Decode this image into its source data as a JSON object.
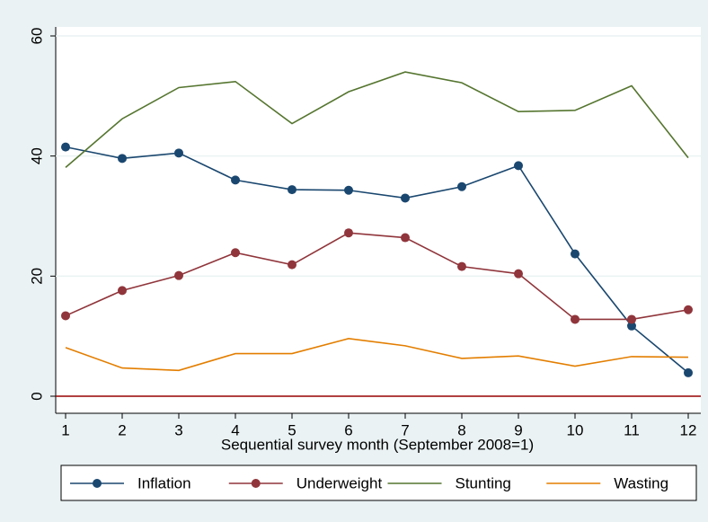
{
  "chart_data": {
    "type": "line",
    "x_label": "Sequential survey month (September 2008=1)",
    "x": [
      1,
      2,
      3,
      4,
      5,
      6,
      7,
      8,
      9,
      10,
      11,
      12
    ],
    "xlim": [
      1,
      12
    ],
    "xticks": [
      1,
      2,
      3,
      4,
      5,
      6,
      7,
      8,
      9,
      10,
      11,
      12
    ],
    "ylim": [
      0,
      60
    ],
    "yticks": [
      0,
      20,
      40,
      60
    ],
    "grid": true,
    "legend": "bottom",
    "yline": {
      "value": 0,
      "color": "#990000"
    },
    "series": [
      {
        "name": "Inflation",
        "color": "#1a476f",
        "marker": true,
        "values": [
          41.5,
          39.6,
          40.5,
          36.0,
          34.4,
          34.3,
          33.0,
          34.9,
          38.4,
          23.7,
          11.7,
          3.9
        ]
      },
      {
        "name": "Underweight",
        "color": "#90353b",
        "marker": true,
        "values": [
          13.4,
          17.6,
          20.1,
          23.9,
          21.9,
          27.2,
          26.4,
          21.6,
          20.4,
          12.8,
          12.8,
          14.4
        ]
      },
      {
        "name": "Stunting",
        "color": "#55752f",
        "marker": false,
        "values": [
          38.1,
          46.2,
          51.4,
          52.4,
          45.4,
          50.7,
          54.0,
          52.2,
          47.4,
          47.6,
          51.7,
          39.7
        ]
      },
      {
        "name": "Wasting",
        "color": "#e37e00",
        "marker": false,
        "values": [
          8.1,
          4.7,
          4.3,
          7.1,
          7.1,
          9.6,
          8.4,
          6.3,
          6.7,
          5.0,
          6.6,
          6.5
        ]
      }
    ]
  }
}
